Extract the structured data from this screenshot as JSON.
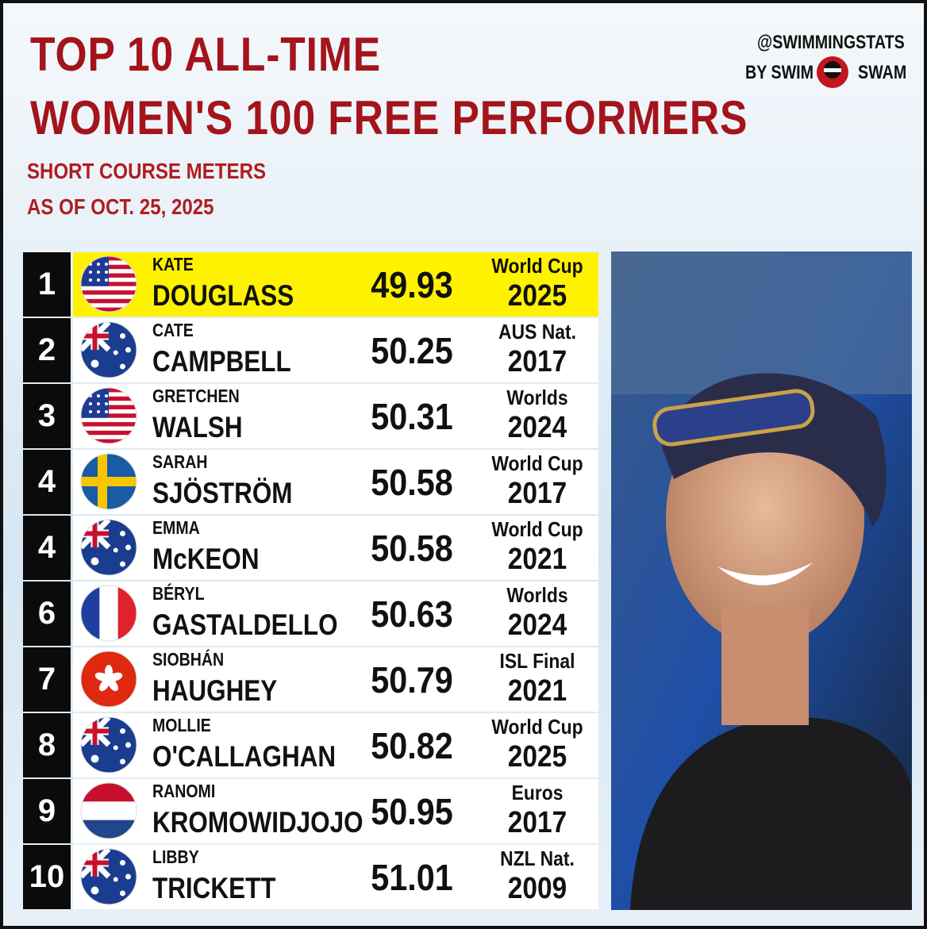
{
  "header": {
    "title_lines": [
      "TOP 10 ALL-TIME",
      "WOMEN'S 100 FREE PERFORMERS"
    ],
    "subtitle_lines": [
      "SHORT COURSE METERS",
      "AS OF OCT. 25, 2025"
    ],
    "credit_lines": [
      "@SWIMMINGSTATS",
      "BY SWIM",
      "SWAM"
    ]
  },
  "table": {
    "rows": [
      {
        "rank": "1",
        "first_name": "KATE",
        "last_name": "DOUGLASS",
        "time": "49.93",
        "meet": "World Cup",
        "year": "2025"
      },
      {
        "rank": "2",
        "first_name": "CATE",
        "last_name": "CAMPBELL",
        "time": "50.25",
        "meet": "AUS Nat.",
        "year": "2017"
      },
      {
        "rank": "3",
        "first_name": "GRETCHEN",
        "last_name": "WALSH",
        "time": "50.31",
        "meet": "Worlds",
        "year": "2024"
      },
      {
        "rank": "4",
        "first_name": "SARAH",
        "last_name": "SJÖSTRÖM",
        "time": "50.58",
        "meet": "World Cup",
        "year": "2017"
      },
      {
        "rank": "4",
        "first_name": "EMMA",
        "last_name": "McKEON",
        "time": "50.58",
        "meet": "World Cup",
        "year": "2021"
      },
      {
        "rank": "6",
        "first_name": "BÉRYL",
        "last_name": "GASTALDELLO",
        "time": "50.63",
        "meet": "Worlds",
        "year": "2024"
      },
      {
        "rank": "7",
        "first_name": "SIOBHÁN",
        "last_name": "HAUGHEY",
        "time": "50.79",
        "meet": "ISL Final",
        "year": "2021"
      },
      {
        "rank": "8",
        "first_name": "MOLLIE",
        "last_name": "O'CALLAGHAN",
        "time": "50.82",
        "meet": "World Cup",
        "year": "2025"
      },
      {
        "rank": "9",
        "first_name": "RANOMI",
        "last_name": "KROMOWIDJOJO",
        "time": "50.95",
        "meet": "Euros",
        "year": "2017"
      },
      {
        "rank": "10",
        "first_name": "LIBBY",
        "last_name": "TRICKETT",
        "time": "51.01",
        "meet": "NZL Nat.",
        "year": "2009"
      }
    ]
  }
}
